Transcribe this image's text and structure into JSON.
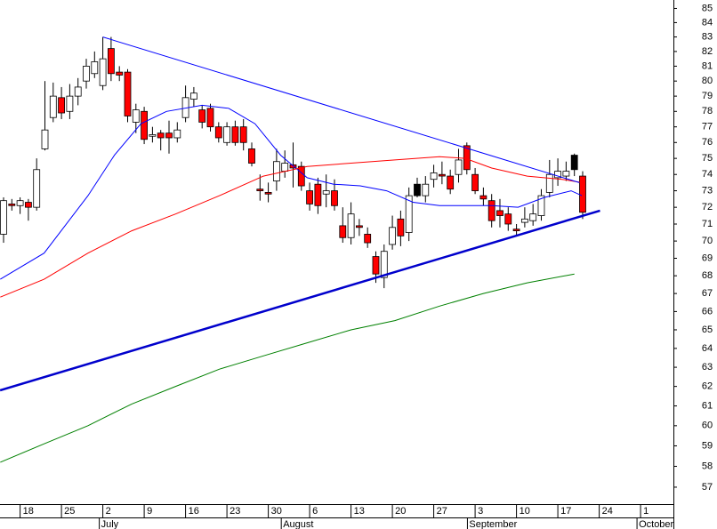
{
  "chart_data": {
    "type": "candlestick",
    "log_y": true,
    "ylim": [
      56.2,
      85.6
    ],
    "yticks": [
      57,
      58,
      59,
      60,
      61,
      62,
      63,
      64,
      65,
      66,
      67,
      68,
      69,
      70,
      71,
      72,
      73,
      74,
      75,
      76,
      77,
      78,
      79,
      80,
      81,
      82,
      83,
      84,
      85
    ],
    "xlim": [
      -0.43,
      80.97
    ],
    "xticks": [
      {
        "value": 2,
        "label": "18"
      },
      {
        "value": 7,
        "label": "25"
      },
      {
        "value": 12,
        "label": "2"
      },
      {
        "value": 17,
        "label": "9"
      },
      {
        "value": 22,
        "label": "16"
      },
      {
        "value": 27,
        "label": "23"
      },
      {
        "value": 32,
        "label": "30"
      },
      {
        "value": 37,
        "label": "6"
      },
      {
        "value": 42,
        "label": "13"
      },
      {
        "value": 47,
        "label": "20"
      },
      {
        "value": 52,
        "label": "27"
      },
      {
        "value": 57,
        "label": "3"
      },
      {
        "value": 62,
        "label": "10"
      },
      {
        "value": 67,
        "label": "17"
      },
      {
        "value": 72,
        "label": "24"
      },
      {
        "value": 77,
        "label": "1"
      }
    ],
    "month_ticks": [
      {
        "value": 12,
        "label": "July"
      },
      {
        "value": 34,
        "label": "August"
      },
      {
        "value": 56.5,
        "label": "September"
      },
      {
        "value": 77,
        "label": "October"
      }
    ],
    "x": [
      0,
      1,
      2,
      3,
      4,
      5,
      6,
      7,
      8,
      9,
      10,
      11,
      12,
      13,
      14,
      15,
      16,
      17,
      18,
      19,
      20,
      21,
      22,
      23,
      24,
      25,
      26,
      27,
      28,
      29,
      30,
      31,
      32,
      33,
      34,
      35,
      36,
      37,
      38,
      39,
      40,
      41,
      42,
      43,
      44,
      45,
      46,
      47,
      48,
      49,
      50,
      51,
      52,
      53,
      54,
      55,
      56,
      57,
      58,
      59,
      60,
      61,
      62,
      63,
      64,
      65,
      66,
      67,
      68,
      69,
      70
    ],
    "open": [
      70.4,
      72.2,
      72.1,
      72.3,
      72.0,
      75.6,
      77.6,
      78.9,
      78.0,
      79.0,
      80.0,
      80.5,
      79.7,
      82.2,
      80.6,
      80.6,
      77.3,
      78.0,
      76.4,
      76.6,
      76.6,
      76.3,
      77.6,
      78.8,
      78.1,
      78.2,
      77.0,
      76.0,
      77.0,
      77.0,
      75.6,
      73.1,
      72.9,
      73.6,
      74.2,
      74.6,
      74.5,
      73.0,
      73.4,
      72.8,
      73.0,
      70.9,
      70.2,
      70.9,
      70.4,
      69.1,
      67.9,
      69.8,
      71.3,
      70.5,
      72.7,
      72.7,
      73.7,
      74.0,
      73.9,
      74.0,
      75.8,
      74.0,
      72.7,
      72.4,
      71.8,
      71.6,
      70.7,
      71.1,
      71.2,
      71.5,
      72.9,
      73.8,
      73.9,
      74.3,
      73.9
    ],
    "high": [
      72.6,
      72.5,
      72.6,
      72.5,
      75.0,
      80.0,
      79.9,
      79.6,
      79.8,
      80.2,
      81.5,
      82.0,
      83.0,
      83.0,
      81.0,
      80.8,
      78.5,
      78.3,
      77.0,
      76.8,
      77.4,
      77.3,
      79.7,
      79.6,
      78.4,
      78.5,
      77.3,
      77.3,
      77.4,
      77.5,
      76.0,
      74.0,
      73.5,
      75.6,
      75.5,
      76.0,
      74.8,
      73.5,
      73.8,
      74.0,
      73.7,
      72.0,
      72.3,
      71.3,
      70.8,
      69.4,
      69.8,
      71.5,
      71.8,
      73.2,
      73.8,
      73.9,
      74.6,
      74.8,
      74.3,
      75.6,
      76.0,
      74.4,
      73.2,
      72.8,
      72.5,
      72.0,
      71.0,
      72.0,
      72.2,
      73.1,
      74.9,
      75.0,
      74.8,
      75.3,
      74.2
    ],
    "low": [
      69.9,
      71.8,
      71.6,
      71.2,
      71.8,
      75.5,
      77.3,
      77.5,
      77.5,
      78.4,
      79.5,
      80.2,
      79.4,
      80.0,
      80.0,
      77.3,
      76.6,
      75.9,
      76.0,
      75.5,
      75.3,
      76.0,
      77.3,
      78.3,
      76.9,
      76.7,
      76.0,
      75.8,
      75.8,
      75.5,
      74.5,
      72.4,
      72.3,
      73.0,
      73.8,
      73.2,
      73.0,
      71.8,
      71.6,
      72.0,
      71.8,
      69.9,
      69.8,
      70.3,
      69.6,
      67.6,
      67.3,
      69.5,
      69.7,
      70.0,
      72.6,
      72.3,
      73.2,
      73.4,
      72.8,
      73.5,
      74.0,
      72.8,
      72.1,
      70.8,
      70.8,
      70.6,
      70.3,
      70.8,
      70.9,
      71.2,
      72.6,
      73.3,
      73.6,
      73.9,
      71.3
    ],
    "close": [
      72.4,
      72.1,
      72.4,
      72.0,
      74.3,
      76.8,
      79.0,
      77.9,
      79.0,
      79.6,
      81.0,
      81.3,
      81.5,
      80.5,
      80.4,
      77.7,
      78.1,
      76.2,
      76.5,
      76.3,
      76.3,
      76.8,
      78.9,
      79.2,
      77.3,
      77.0,
      76.3,
      77.0,
      76.0,
      76.0,
      74.7,
      73.0,
      72.8,
      74.8,
      74.7,
      74.4,
      73.3,
      72.2,
      72.1,
      73.0,
      72.1,
      70.2,
      71.6,
      70.8,
      69.9,
      68.1,
      69.4,
      70.8,
      70.3,
      72.7,
      73.4,
      73.4,
      74.1,
      73.9,
      73.1,
      74.9,
      74.3,
      73.0,
      72.5,
      71.2,
      71.5,
      71.0,
      70.6,
      71.3,
      71.6,
      72.7,
      74.0,
      74.2,
      74.2,
      75.2,
      71.7
    ],
    "candle_colors": [
      "#ffffff",
      "#ff0000",
      "#ffffff",
      "#ff0000",
      "#ffffff",
      "#ffffff",
      "#ffffff",
      "#ff0000",
      "#ffffff",
      "#ffffff",
      "#ffffff",
      "#ffffff",
      "#ffffff",
      "#ff0000",
      "#ff0000",
      "#ff0000",
      "#ffffff",
      "#ff0000",
      "#ffffff",
      "#ff0000",
      "#ff0000",
      "#ffffff",
      "#ffffff",
      "#ffffff",
      "#ff0000",
      "#ff0000",
      "#ff0000",
      "#ffffff",
      "#ff0000",
      "#ff0000",
      "#ff0000",
      "#ff0000",
      "#ff0000",
      "#ffffff",
      "#ffffff",
      "#ff0000",
      "#ff0000",
      "#ff0000",
      "#ff0000",
      "#ffffff",
      "#ff0000",
      "#ff0000",
      "#ffffff",
      "#ff0000",
      "#ff0000",
      "#ff0000",
      "#ffffff",
      "#ffffff",
      "#ff0000",
      "#ffffff",
      "#000000",
      "#ffffff",
      "#ffffff",
      "#ff0000",
      "#ff0000",
      "#ffffff",
      "#ff0000",
      "#ff0000",
      "#ff0000",
      "#ff0000",
      "#ff0000",
      "#ff0000",
      "#ff0000",
      "#ffffff",
      "#ffffff",
      "#ffffff",
      "#ffffff",
      "#ffffff",
      "#ffffff",
      "#000000",
      "#ff0000"
    ],
    "lines": [
      {
        "color": "#0000ff",
        "width": 1,
        "x": [
          -0.4,
          4.9,
          10.2,
          13.4,
          16.6,
          19.7,
          24,
          27.2,
          30.4,
          33.5,
          36.7,
          39.9,
          43.1,
          46.3,
          49.5,
          52.7,
          55.8,
          59,
          62.2,
          65.4,
          68.6,
          69.9
        ],
        "values": [
          67.8,
          69.3,
          72.7,
          75.2,
          77.2,
          78.0,
          78.4,
          78.2,
          77.2,
          75.2,
          73.8,
          73.4,
          73.3,
          73.0,
          72.3,
          72.1,
          72.1,
          72.1,
          72.0,
          72.6,
          73.0,
          72.7
        ]
      },
      {
        "color": "#ff0000",
        "width": 1,
        "x": [
          -0.4,
          4.9,
          10.2,
          15.5,
          20.8,
          26.1,
          31.4,
          36.7,
          42,
          47.3,
          52.7,
          55.8,
          59,
          63.3,
          67.5,
          69.9
        ],
        "values": [
          66.8,
          67.8,
          69.3,
          70.6,
          71.6,
          72.7,
          73.9,
          74.5,
          74.7,
          74.9,
          75.1,
          75.0,
          74.4,
          73.9,
          73.7,
          73.5
        ]
      },
      {
        "color": "#008000",
        "width": 1,
        "x": [
          -0.4,
          4.9,
          10.2,
          15.5,
          20.8,
          26.1,
          31.4,
          36.7,
          42,
          47.3,
          52.7,
          58,
          63.3,
          69
        ],
        "values": [
          58.2,
          59.1,
          60.0,
          61.1,
          62.0,
          62.9,
          63.6,
          64.3,
          65.0,
          65.5,
          66.3,
          67.0,
          67.6,
          68.1
        ]
      },
      {
        "color": "#0000ff",
        "width": 1,
        "x": [
          12,
          69.6
        ],
        "values": [
          83.0,
          73.5
        ]
      },
      {
        "color": "#0000cc",
        "width": 2.5,
        "x": [
          -0.42,
          72.1
        ],
        "values": [
          61.8,
          71.8
        ]
      }
    ]
  }
}
